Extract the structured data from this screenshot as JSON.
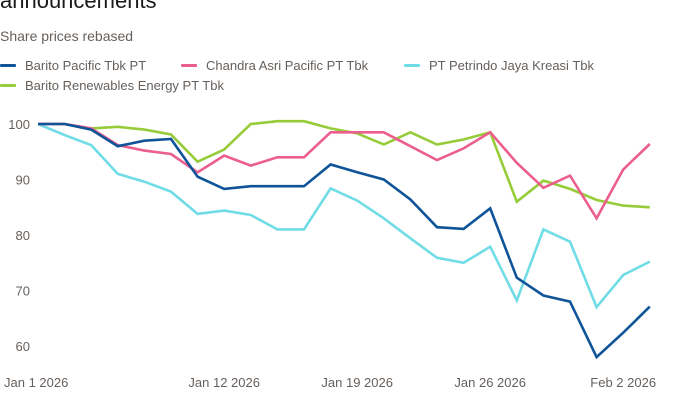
{
  "header": {
    "title": "announcements",
    "subtitle": "Share prices rebased"
  },
  "chart_data": {
    "type": "line",
    "title": "announcements",
    "subtitle": "Share prices rebased",
    "xlabel": "",
    "ylabel": "",
    "ylim": [
      57,
      102
    ],
    "yticks": [
      100,
      90,
      80,
      70,
      60
    ],
    "grid": false,
    "legend_position": "top-left",
    "x": [
      "Jan 1 2026",
      "Jan 2 2026",
      "Jan 5 2026",
      "Jan 6 2026",
      "Jan 7 2026",
      "Jan 8 2026",
      "Jan 9 2026",
      "Jan 12 2026",
      "Jan 13 2026",
      "Jan 14 2026",
      "Jan 15 2026",
      "Jan 16 2026",
      "Jan 19 2026",
      "Jan 20 2026",
      "Jan 21 2026",
      "Jan 22 2026",
      "Jan 23 2026",
      "Jan 26 2026",
      "Jan 27 2026",
      "Jan 28 2026",
      "Jan 29 2026",
      "Jan 30 2026",
      "Feb 2 2026",
      "Feb 3 2026"
    ],
    "xtick_labels": [
      {
        "label": "Jan 1 2026",
        "index": 0
      },
      {
        "label": "Jan 12 2026",
        "index": 7
      },
      {
        "label": "Jan 19 2026",
        "index": 12
      },
      {
        "label": "Jan 26 2026",
        "index": 17
      },
      {
        "label": "Feb 2 2026",
        "index": 22
      }
    ],
    "series": [
      {
        "name": "Barito Pacific Tbk PT",
        "color": "#0f5499",
        "values": [
          100,
          100,
          99,
          96,
          97,
          97.3,
          90.5,
          88.3,
          88.8,
          88.8,
          88.8,
          92.7,
          91.3,
          90,
          86.4,
          81.4,
          81.1,
          84.8,
          72.3,
          69.1,
          68,
          58,
          62.4,
          67.1
        ]
      },
      {
        "name": "Chandra Asri Pacific PT Tbk",
        "color": "#eb5e8d",
        "values": [
          100,
          100,
          99.2,
          96.2,
          95.2,
          94.6,
          91.3,
          94.3,
          92.5,
          94,
          94,
          98.5,
          98.5,
          98.5,
          96,
          93.5,
          95.6,
          98.5,
          93,
          88.5,
          90.7,
          83,
          91.8,
          96.4
        ]
      },
      {
        "name": "PT Petrindo Jaya Kreasi Tbk",
        "color": "#70dce6",
        "values": [
          100,
          98,
          96.2,
          91,
          89.6,
          87.8,
          83.8,
          84.4,
          83.6,
          81,
          81,
          88.4,
          86.2,
          83,
          79.4,
          75.9,
          75,
          77.9,
          68.2,
          81,
          78.8,
          67,
          72.8,
          75.2
        ]
      },
      {
        "name": "Barito Renewables Energy PT Tbk",
        "color": "#96cc39",
        "values": [
          100,
          100,
          99.2,
          99.5,
          99,
          98.1,
          93.2,
          95.4,
          100,
          100.5,
          100.5,
          99.2,
          98.3,
          96.3,
          98.5,
          96.3,
          97.2,
          98.5,
          86,
          89.8,
          88.3,
          86.3,
          85.3,
          85
        ]
      }
    ]
  }
}
